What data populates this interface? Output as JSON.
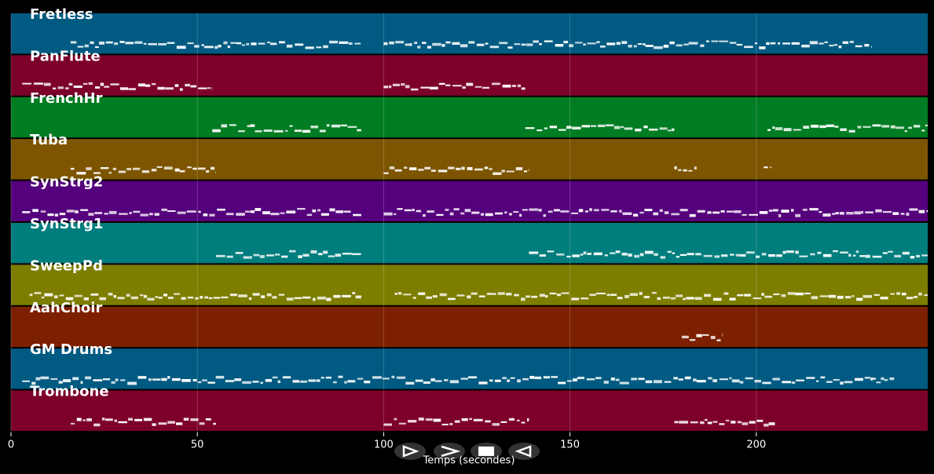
{
  "chart_data": {
    "type": "pianoroll",
    "xlabel": "Temps (secondes)",
    "xlim": [
      0,
      246
    ],
    "xticks": [
      0,
      50,
      100,
      150,
      200
    ],
    "grid": true,
    "tracks": [
      {
        "name": "Fretless",
        "color": "#005a82",
        "spans": [
          [
            16,
            94
          ],
          [
            100,
            231
          ]
        ]
      },
      {
        "name": "PanFlute",
        "color": "#7d002b",
        "spans": [
          [
            3,
            54
          ],
          [
            100,
            138
          ]
        ]
      },
      {
        "name": "FrenchHr",
        "color": "#007c22",
        "spans": [
          [
            54,
            94
          ],
          [
            138,
            178
          ],
          [
            203,
            246
          ]
        ]
      },
      {
        "name": "Tuba",
        "color": "#7d5500",
        "spans": [
          [
            16,
            55
          ],
          [
            100,
            139
          ],
          [
            178,
            184
          ],
          [
            202,
            204
          ]
        ]
      },
      {
        "name": "SynStrg2",
        "color": "#55007d",
        "spans": [
          [
            3,
            94
          ],
          [
            100,
            246
          ]
        ]
      },
      {
        "name": "SynStrg1",
        "color": "#007d7d",
        "spans": [
          [
            55,
            94
          ],
          [
            139,
            246
          ]
        ]
      },
      {
        "name": "SweepPd",
        "color": "#7d7d00",
        "spans": [
          [
            5,
            94
          ],
          [
            103,
            246
          ]
        ]
      },
      {
        "name": "AahChoir",
        "color": "#7d2000",
        "spans": [
          [
            180,
            191
          ]
        ]
      },
      {
        "name": "GM Drums",
        "color": "#005a82",
        "spans": [
          [
            3,
            237
          ]
        ]
      },
      {
        "name": "Trombone",
        "color": "#7d002b",
        "spans": [
          [
            16,
            55
          ],
          [
            100,
            139
          ],
          [
            178,
            205
          ]
        ]
      }
    ]
  }
}
